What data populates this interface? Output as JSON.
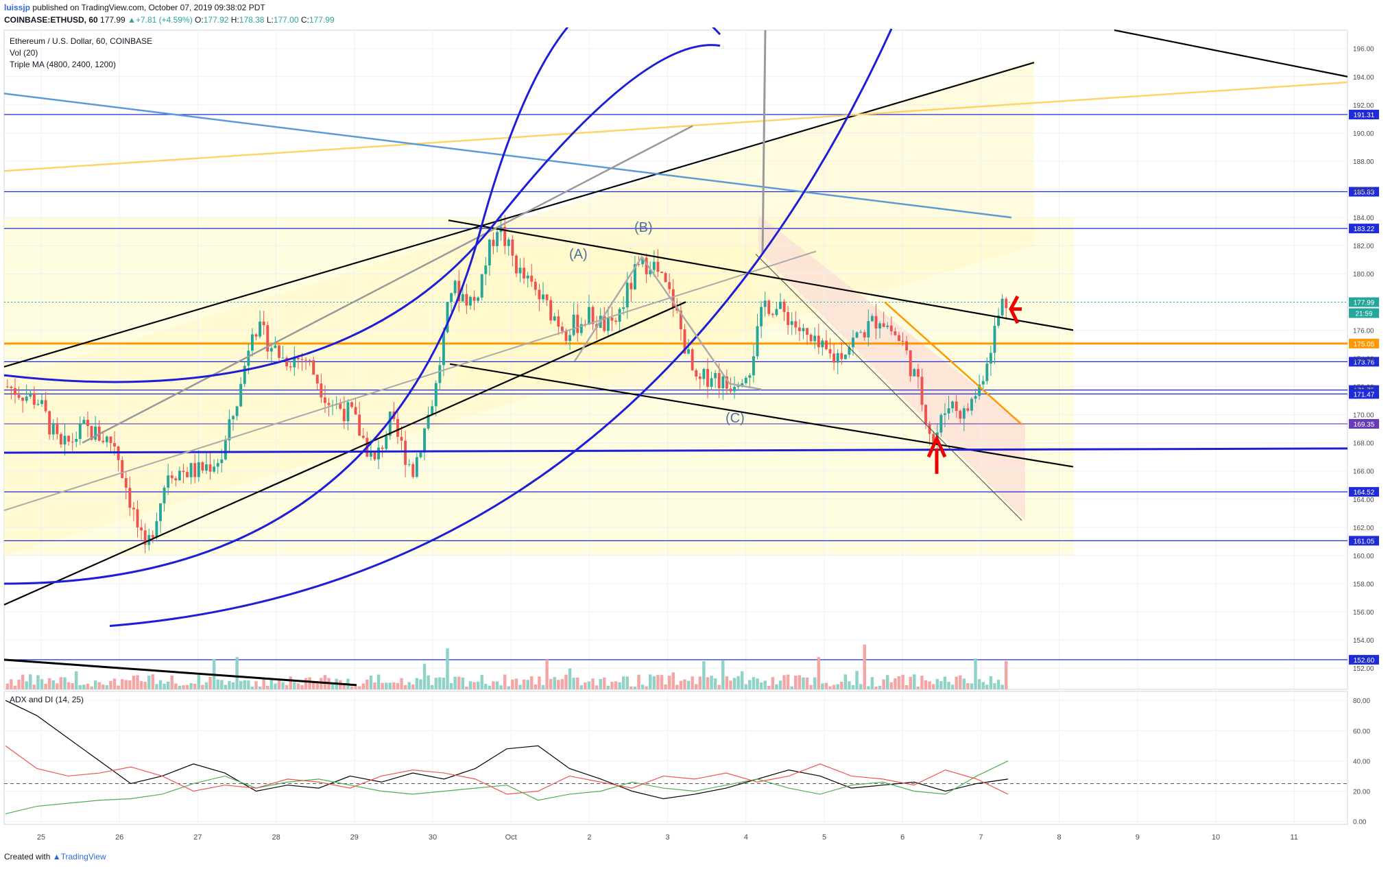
{
  "header": {
    "user": "luissjp",
    "published": "published on TradingView.com, October 07, 2019 09:38:02 PDT",
    "symbol": "COINBASE:ETHUSD, 60",
    "last": "177.99",
    "change": "+7.81 (+4.59%)",
    "o_label": "O:",
    "o_value": "177.92",
    "h_label": "H:",
    "h_value": "178.38",
    "l_label": "L:",
    "l_value": "177.00",
    "c_label": "C:",
    "c_value": "177.99"
  },
  "legend": {
    "title": "Ethereum / U.S. Dollar, 60, COINBASE",
    "vol": "Vol (20)",
    "tma": "Triple MA (4800, 2400, 1200)",
    "adx": "ADX and DI (14, 25)"
  },
  "footer": {
    "created": "Created with",
    "brand": "TradingView"
  },
  "colors": {
    "up": "#26a69a",
    "down": "#ef5350",
    "blue_line": "#1e1ed6",
    "orange": "#ff9800",
    "purple": "#673ab7",
    "hline": "#1e2bd6"
  },
  "chart_data": {
    "type": "candlestick",
    "price_axis": {
      "min": 150.5,
      "max": 197.3,
      "ticks": [
        "152.00",
        "154.00",
        "156.00",
        "158.00",
        "160.00",
        "162.00",
        "164.00",
        "166.00",
        "168.00",
        "170.00",
        "172.00",
        "174.00",
        "176.00",
        "178.00",
        "180.00",
        "182.00",
        "184.00",
        "186.00",
        "188.00",
        "190.00",
        "192.00",
        "194.00",
        "196.00"
      ]
    },
    "adx_axis": {
      "min": -2,
      "max": 86,
      "ticks": [
        "0.00",
        "20.00",
        "40.00",
        "60.00",
        "80.00"
      ],
      "dashed_level": 25
    },
    "time_axis": [
      "25",
      "26",
      "27",
      "28",
      "29",
      "30",
      "Oct",
      "2",
      "3",
      "4",
      "5",
      "6",
      "7",
      "8",
      "9",
      "10",
      "11"
    ],
    "current_price": "177.99",
    "countdown": "21:59",
    "horizontal_levels": [
      {
        "label": "191.31",
        "value": 191.31,
        "color": "#1e2bd6"
      },
      {
        "label": "185.83",
        "value": 185.83,
        "color": "#1e2bd6"
      },
      {
        "label": "183.22",
        "value": 183.22,
        "color": "#1e2bd6"
      },
      {
        "label": "175.05",
        "value": 175.05,
        "color": "#ff9800"
      },
      {
        "label": "173.76",
        "value": 173.76,
        "color": "#1e2bd6"
      },
      {
        "label": "171.75",
        "value": 171.75,
        "color": "#1e2bd6"
      },
      {
        "label": "171.47",
        "value": 171.47,
        "color": "#1e2bd6"
      },
      {
        "label": "169.35",
        "value": 169.35,
        "color": "#673ab7"
      },
      {
        "label": "164.52",
        "value": 164.52,
        "color": "#1e2bd6"
      },
      {
        "label": "161.05",
        "value": 161.05,
        "color": "#1e2bd6"
      },
      {
        "label": "152.60",
        "value": 152.6,
        "color": "#1e2bd6"
      }
    ],
    "annotations": [
      "(A)",
      "(B)",
      "(C)"
    ],
    "ohlc_key_points": [
      {
        "t": 0,
        "p": 172
      },
      {
        "t": 8,
        "p": 171
      },
      {
        "t": 14,
        "p": 167.5
      },
      {
        "t": 20,
        "p": 169
      },
      {
        "t": 28,
        "p": 168
      },
      {
        "t": 36,
        "p": 160
      },
      {
        "t": 42,
        "p": 166
      },
      {
        "t": 50,
        "p": 166
      },
      {
        "t": 56,
        "p": 167
      },
      {
        "t": 61,
        "p": 172
      },
      {
        "t": 64,
        "p": 176.5
      },
      {
        "t": 72,
        "p": 174
      },
      {
        "t": 78,
        "p": 174
      },
      {
        "t": 84,
        "p": 171
      },
      {
        "t": 90,
        "p": 170
      },
      {
        "t": 96,
        "p": 166.5
      },
      {
        "t": 100,
        "p": 169.5
      },
      {
        "t": 106,
        "p": 166
      },
      {
        "t": 112,
        "p": 172
      },
      {
        "t": 116,
        "p": 179
      },
      {
        "t": 122,
        "p": 178
      },
      {
        "t": 128,
        "p": 183.5
      },
      {
        "t": 134,
        "p": 180
      },
      {
        "t": 140,
        "p": 178
      },
      {
        "t": 146,
        "p": 176
      },
      {
        "t": 152,
        "p": 177
      },
      {
        "t": 158,
        "p": 176
      },
      {
        "t": 164,
        "p": 180
      },
      {
        "t": 168,
        "p": 181
      },
      {
        "t": 174,
        "p": 178
      },
      {
        "t": 180,
        "p": 172
      },
      {
        "t": 184,
        "p": 173
      },
      {
        "t": 188,
        "p": 172
      },
      {
        "t": 194,
        "p": 173.5
      },
      {
        "t": 198,
        "p": 178
      },
      {
        "t": 204,
        "p": 177
      },
      {
        "t": 210,
        "p": 175
      },
      {
        "t": 216,
        "p": 174
      },
      {
        "t": 222,
        "p": 175.5
      },
      {
        "t": 228,
        "p": 177
      },
      {
        "t": 234,
        "p": 175
      },
      {
        "t": 238,
        "p": 172
      },
      {
        "t": 242,
        "p": 168
      },
      {
        "t": 246,
        "p": 171
      },
      {
        "t": 250,
        "p": 170
      },
      {
        "t": 254,
        "p": 172
      },
      {
        "t": 258,
        "p": 176
      },
      {
        "t": 260,
        "p": 178
      }
    ],
    "adx_series": [
      {
        "name": "ADX",
        "color": "#000000",
        "values": [
          80,
          70,
          55,
          40,
          25,
          30,
          38,
          32,
          20,
          24,
          22,
          30,
          26,
          32,
          28,
          35,
          48,
          50,
          35,
          28,
          20,
          15,
          18,
          22,
          28,
          34,
          30,
          22,
          24,
          26,
          20,
          25,
          28
        ]
      },
      {
        "name": "+DI",
        "color": "#4caf50",
        "values": [
          5,
          10,
          12,
          14,
          15,
          18,
          25,
          30,
          22,
          26,
          28,
          24,
          20,
          18,
          20,
          22,
          24,
          14,
          18,
          20,
          26,
          22,
          20,
          24,
          28,
          22,
          18,
          24,
          26,
          20,
          18,
          30,
          40
        ]
      },
      {
        "name": "-DI",
        "color": "#ef5350",
        "values": [
          50,
          35,
          30,
          32,
          36,
          30,
          20,
          24,
          22,
          28,
          26,
          22,
          30,
          34,
          32,
          28,
          18,
          20,
          30,
          26,
          22,
          30,
          28,
          32,
          26,
          30,
          38,
          30,
          28,
          24,
          34,
          28,
          18
        ]
      }
    ]
  }
}
